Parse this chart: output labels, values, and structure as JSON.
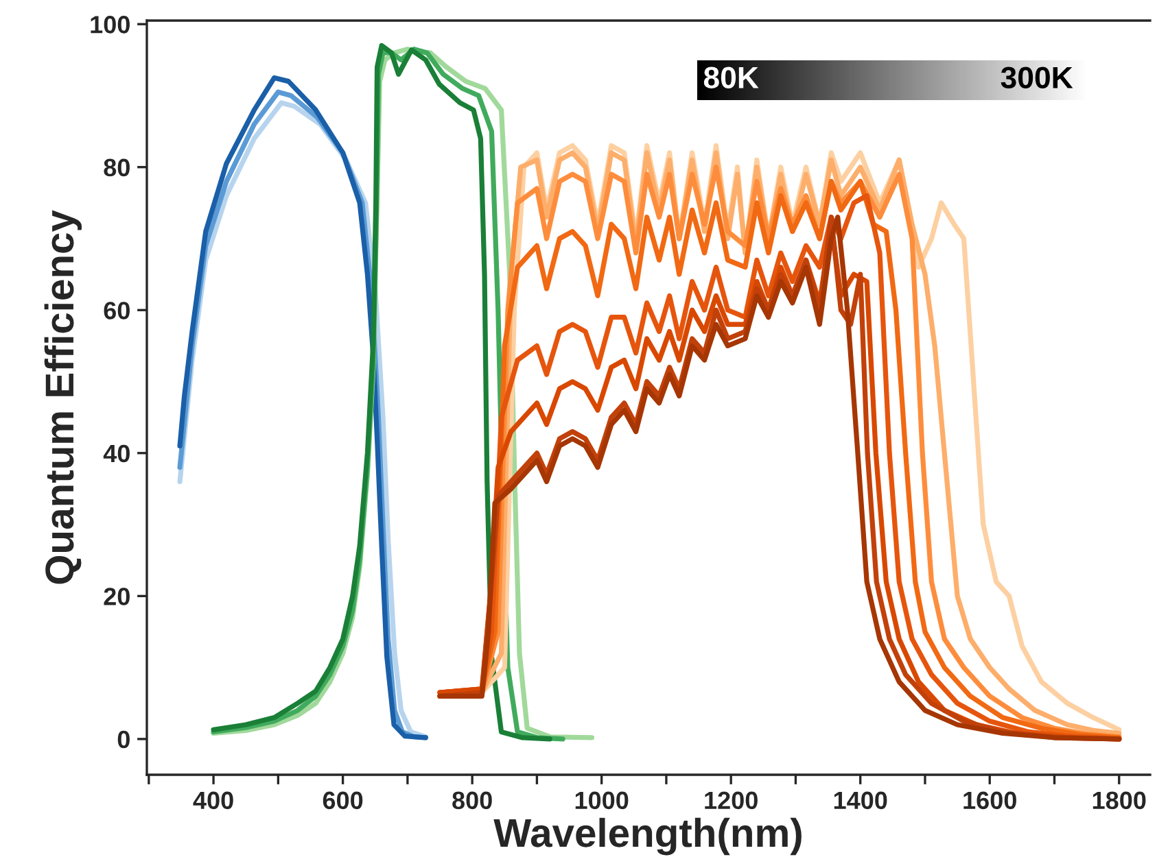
{
  "chart_data": {
    "type": "line",
    "xlabel": "Wavelength(nm)",
    "ylabel": "Quantum Efficiency",
    "xlim": [
      297,
      1848
    ],
    "ylim": [
      -5,
      100.5
    ],
    "xticks": [
      {
        "value": 300,
        "label": null
      },
      400,
      {
        "value": 500,
        "label": null
      },
      600,
      {
        "value": 700,
        "label": null
      },
      800,
      {
        "value": 900,
        "label": null
      },
      1000,
      {
        "value": 1100,
        "label": null
      },
      1200,
      {
        "value": 1300,
        "label": null
      },
      1400,
      {
        "value": 1500,
        "label": null
      },
      1600,
      {
        "value": 1700,
        "label": null
      },
      1800
    ],
    "yticks": [
      0,
      20,
      40,
      60,
      80,
      100
    ],
    "annotations": [
      "80K",
      "300K"
    ],
    "series": [
      {
        "color": "#b7d4ee",
        "x": [
          348,
          367,
          388,
          420,
          463,
          505,
          525,
          565,
          605,
          635,
          650,
          662,
          670,
          680,
          690,
          705,
          728
        ],
        "values": [
          36,
          53,
          67,
          76,
          84,
          89,
          88.5,
          86,
          81,
          75,
          63,
          45,
          28,
          12,
          4,
          1,
          0.3
        ]
      },
      {
        "color": "#5b9bd5",
        "x": [
          348,
          367,
          388,
          420,
          463,
          500,
          520,
          560,
          600,
          630,
          645,
          655,
          662,
          670,
          680,
          692,
          710,
          728
        ],
        "values": [
          38,
          55,
          69,
          78,
          86,
          90.5,
          90,
          87,
          82,
          75,
          62,
          45,
          30,
          14,
          4,
          1,
          0.3,
          0.2
        ]
      },
      {
        "color": "#1a5fa8",
        "x": [
          348,
          355,
          367,
          388,
          420,
          463,
          494,
          516,
          558,
          600,
          626,
          638,
          647,
          653,
          660,
          668,
          679,
          696,
          728
        ],
        "values": [
          41,
          48,
          57,
          71,
          80.5,
          88,
          92.5,
          92,
          88,
          82,
          75,
          65,
          53.6,
          42,
          27,
          11.5,
          2,
          0.4,
          0.2
        ]
      },
      {
        "color": "#a1d99b",
        "x": [
          400,
          450,
          494,
          530,
          558,
          580,
          600,
          615,
          626,
          638,
          647,
          652,
          657,
          665,
          680,
          700,
          715,
          735,
          760,
          790,
          820,
          845,
          858,
          866,
          873,
          885,
          920,
          985
        ],
        "values": [
          0.8,
          1.2,
          2,
          3.3,
          5,
          8,
          12,
          17,
          24,
          37,
          52,
          72,
          92,
          95,
          96,
          96.5,
          96,
          96,
          94,
          92,
          91,
          88,
          65,
          35,
          12,
          1.5,
          0.3,
          0.2
        ]
      },
      {
        "color": "#41ab5d",
        "x": [
          400,
          450,
          494,
          530,
          558,
          580,
          600,
          615,
          626,
          638,
          647,
          652,
          655,
          662,
          675,
          690,
          710,
          730,
          755,
          785,
          810,
          830,
          840,
          848,
          855,
          870,
          900,
          940
        ],
        "values": [
          1,
          1.6,
          2.5,
          4,
          6,
          9,
          13,
          18,
          25,
          38,
          53,
          74,
          93,
          96,
          96,
          95,
          96.5,
          96,
          93,
          91,
          90,
          85,
          60,
          30,
          10,
          1,
          0.2,
          0
        ]
      },
      {
        "color": "#1a7f37",
        "x": [
          400,
          450,
          494,
          530,
          558,
          580,
          600,
          615,
          626,
          638,
          647,
          651,
          653,
          660,
          675,
          686,
          706,
          728,
          749,
          781,
          802,
          813,
          819,
          823,
          830,
          845,
          877,
          920
        ],
        "values": [
          1.3,
          2,
          3,
          5,
          6.7,
          10,
          14,
          20,
          27,
          40,
          55.6,
          75,
          94,
          97,
          96,
          93,
          96.4,
          95,
          91.6,
          89,
          88,
          84,
          65,
          36,
          11.5,
          1,
          0.2,
          0
        ]
      },
      {
        "color": "#fdd0a2",
        "x": [
          750,
          815,
          850,
          865,
          880,
          900,
          915,
          935,
          955,
          975,
          994,
          1015,
          1035,
          1053,
          1070,
          1089,
          1105,
          1120,
          1140,
          1159,
          1177,
          1195,
          1210,
          1222,
          1240,
          1258,
          1277,
          1295,
          1316,
          1337,
          1355,
          1370,
          1400,
          1430,
          1460,
          1475,
          1490,
          1510,
          1525,
          1545,
          1560,
          1575,
          1590,
          1610,
          1630,
          1650,
          1680,
          1720,
          1760,
          1800
        ],
        "values": [
          6,
          6.5,
          10,
          60,
          80,
          82,
          74,
          82,
          83,
          81,
          72,
          83,
          82,
          70,
          83,
          75,
          82,
          70,
          82,
          72,
          83,
          71,
          80,
          68,
          81,
          70,
          80,
          72,
          80,
          72,
          82,
          78,
          82,
          75,
          81,
          74,
          66,
          70,
          75,
          72,
          70,
          50,
          30,
          22,
          20,
          13,
          8,
          5,
          3,
          1.3
        ]
      },
      {
        "color": "#fdae6b",
        "x": [
          750,
          815,
          845,
          860,
          875,
          900,
          915,
          935,
          955,
          975,
          994,
          1015,
          1035,
          1053,
          1070,
          1089,
          1105,
          1120,
          1140,
          1159,
          1177,
          1195,
          1210,
          1222,
          1240,
          1258,
          1277,
          1295,
          1316,
          1337,
          1355,
          1370,
          1400,
          1430,
          1460,
          1480,
          1500,
          1515,
          1530,
          1550,
          1570,
          1600,
          1630,
          1670,
          1720,
          1760,
          1800
        ],
        "values": [
          6,
          6.5,
          12,
          65,
          80,
          81,
          73,
          81,
          82,
          80,
          71,
          82,
          81,
          69,
          82,
          74,
          81,
          70,
          81,
          71,
          82,
          70,
          79,
          68,
          80,
          70,
          79,
          71,
          79,
          72,
          81,
          76,
          80,
          74,
          81,
          72,
          65,
          55,
          40,
          20,
          14,
          10,
          7,
          4,
          2,
          1.2,
          0.8
        ]
      },
      {
        "color": "#fd8d3c",
        "x": [
          750,
          815,
          840,
          855,
          870,
          900,
          915,
          935,
          955,
          975,
          994,
          1015,
          1035,
          1053,
          1070,
          1089,
          1105,
          1120,
          1140,
          1159,
          1177,
          1195,
          1222,
          1240,
          1258,
          1277,
          1295,
          1316,
          1337,
          1355,
          1370,
          1400,
          1430,
          1460,
          1480,
          1496,
          1510,
          1530,
          1560,
          1600,
          1650,
          1700,
          1750,
          1800
        ],
        "values": [
          6,
          6.5,
          15,
          60,
          75,
          77,
          70,
          78,
          79,
          78,
          70,
          79,
          78,
          68,
          79,
          73,
          79,
          70,
          79,
          72,
          80,
          71,
          69,
          78,
          70,
          77,
          72,
          76,
          70,
          78,
          75,
          78,
          73,
          79,
          70,
          40,
          22,
          14,
          10,
          6,
          3,
          1.5,
          0.7,
          0.3
        ]
      },
      {
        "color": "#f16913",
        "x": [
          750,
          815,
          835,
          850,
          870,
          900,
          915,
          935,
          955,
          975,
          994,
          1015,
          1035,
          1053,
          1070,
          1089,
          1105,
          1120,
          1140,
          1159,
          1177,
          1195,
          1222,
          1240,
          1258,
          1277,
          1295,
          1316,
          1337,
          1355,
          1370,
          1400,
          1420,
          1440,
          1455,
          1470,
          1485,
          1500,
          1530,
          1570,
          1620,
          1680,
          1740,
          1800
        ],
        "values": [
          6.5,
          7,
          15,
          55,
          66,
          69,
          63,
          70,
          71,
          69,
          62,
          72,
          70,
          63,
          73,
          67,
          73,
          65,
          74,
          68,
          75,
          67,
          66,
          75,
          68,
          76,
          71,
          75,
          70,
          78,
          74,
          78,
          72,
          71,
          60,
          40,
          22,
          15,
          10,
          6,
          3,
          1.5,
          0.6,
          0.2
        ]
      },
      {
        "color": "#e6550d",
        "x": [
          750,
          815,
          830,
          845,
          870,
          900,
          915,
          935,
          955,
          975,
          994,
          1015,
          1035,
          1053,
          1070,
          1089,
          1105,
          1120,
          1140,
          1159,
          1177,
          1195,
          1222,
          1240,
          1258,
          1277,
          1295,
          1316,
          1337,
          1355,
          1370,
          1390,
          1410,
          1430,
          1445,
          1460,
          1480,
          1510,
          1550,
          1600,
          1660,
          1720,
          1800
        ],
        "values": [
          6.5,
          7,
          15,
          45,
          53,
          55,
          51,
          57,
          58,
          57,
          52,
          59,
          59,
          54,
          61,
          57,
          62,
          56,
          64,
          60,
          66,
          60,
          59,
          67,
          62,
          68,
          64,
          69,
          66,
          73,
          70,
          75,
          76,
          68,
          40,
          22,
          14,
          9,
          5,
          2.5,
          1,
          0.4,
          0
        ]
      },
      {
        "color": "#d94801",
        "x": [
          750,
          815,
          828,
          840,
          860,
          880,
          900,
          915,
          935,
          955,
          975,
          994,
          1015,
          1035,
          1053,
          1070,
          1089,
          1105,
          1120,
          1140,
          1159,
          1177,
          1195,
          1222,
          1240,
          1258,
          1277,
          1295,
          1316,
          1337,
          1355,
          1370,
          1390,
          1410,
          1424,
          1440,
          1460,
          1490,
          1530,
          1580,
          1640,
          1720,
          1800
        ],
        "values": [
          6.5,
          7,
          20,
          38,
          43,
          45,
          47,
          44,
          49,
          50,
          49,
          46,
          52,
          53,
          49,
          56,
          53,
          57,
          53,
          60,
          57,
          62,
          58,
          58,
          64,
          60,
          66,
          62,
          67,
          61,
          72,
          62,
          65,
          64,
          40,
          22,
          14,
          8,
          4,
          2,
          0.8,
          0.2,
          0
        ]
      },
      {
        "color": "#c2410a",
        "x": [
          750,
          815,
          828,
          840,
          860,
          880,
          900,
          915,
          935,
          955,
          975,
          994,
          1015,
          1035,
          1053,
          1070,
          1089,
          1105,
          1120,
          1140,
          1159,
          1177,
          1195,
          1222,
          1240,
          1258,
          1277,
          1295,
          1316,
          1337,
          1355,
          1370,
          1385,
          1400,
          1411,
          1425,
          1445,
          1470,
          1510,
          1560,
          1620,
          1700,
          1800
        ],
        "values": [
          6,
          6.5,
          20,
          34,
          36,
          38,
          40,
          37,
          42,
          43,
          42,
          39,
          45,
          47,
          44,
          50,
          48,
          52,
          49,
          56,
          54,
          60,
          56,
          57,
          63,
          60,
          65,
          62,
          67,
          60,
          73,
          60,
          58,
          65,
          40,
          22,
          14,
          9,
          5,
          2.5,
          1,
          0.2,
          0
        ]
      },
      {
        "color": "#a63603",
        "x": [
          750,
          815,
          825,
          835,
          860,
          880,
          900,
          915,
          935,
          955,
          975,
          994,
          1015,
          1035,
          1053,
          1070,
          1089,
          1105,
          1120,
          1140,
          1159,
          1177,
          1195,
          1222,
          1240,
          1258,
          1277,
          1295,
          1316,
          1337,
          1355,
          1365,
          1380,
          1396,
          1410,
          1430,
          1460,
          1500,
          1550,
          1620,
          1700,
          1800
        ],
        "values": [
          6,
          6,
          15,
          33,
          35,
          37,
          39,
          36,
          41,
          42,
          41,
          38,
          44,
          46,
          43,
          49,
          47,
          51,
          48,
          55,
          53,
          58,
          55,
          56,
          62,
          59,
          64,
          61,
          66,
          58,
          70,
          73,
          60,
          40,
          22,
          14,
          8,
          4,
          2,
          0.8,
          0.2,
          0
        ]
      }
    ]
  }
}
